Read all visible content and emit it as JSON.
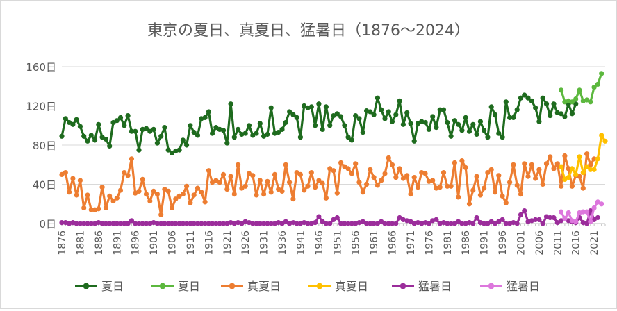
{
  "chart_data": {
    "type": "line",
    "title": "東京の夏日、真夏日、猛暑日（1876～2024）",
    "xlabel": "",
    "ylabel": "",
    "ylim": [
      0,
      160
    ],
    "y_ticks": [
      0,
      40,
      80,
      120,
      160
    ],
    "y_tick_labels": [
      "0日",
      "40日",
      "80日",
      "120日",
      "160日"
    ],
    "x_range": [
      1876,
      2024
    ],
    "x_ticks": [
      1876,
      1881,
      1886,
      1891,
      1896,
      1901,
      1906,
      1911,
      1916,
      1921,
      1926,
      1931,
      1936,
      1941,
      1946,
      1951,
      1956,
      1961,
      1966,
      1971,
      1976,
      1981,
      1986,
      1991,
      1996,
      2001,
      2006,
      2011,
      2016,
      2021
    ],
    "grid": "horizontal",
    "legend_position": "bottom",
    "legend": [
      "夏日",
      "夏日",
      "真夏日",
      "真夏日",
      "猛暑日",
      "猛暑日"
    ],
    "series": [
      {
        "name": "夏日",
        "color": "#1e6b1e",
        "x_start": 1876,
        "values": [
          89,
          107,
          103,
          101,
          106,
          99,
          89,
          84,
          90,
          85,
          101,
          88,
          86,
          79,
          103,
          105,
          108,
          100,
          110,
          94,
          94,
          75,
          96,
          97,
          94,
          96,
          82,
          89,
          98,
          75,
          72,
          74,
          75,
          85,
          80,
          100,
          93,
          90,
          107,
          108,
          114,
          92,
          98,
          96,
          95,
          82,
          122,
          88,
          96,
          91,
          92,
          100,
          90,
          92,
          102,
          89,
          91,
          118,
          92,
          93,
          96,
          103,
          114,
          111,
          108,
          88,
          120,
          118,
          119,
          100,
          122,
          96,
          119,
          100,
          110,
          112,
          109,
          100,
          88,
          85,
          110,
          107,
          93,
          115,
          114,
          111,
          128,
          116,
          107,
          114,
          104,
          111,
          125,
          101,
          113,
          102,
          84,
          102,
          104,
          103,
          96,
          109,
          98,
          116,
          116,
          103,
          89,
          105,
          101,
          95,
          108,
          94,
          101,
          91,
          104,
          95,
          88,
          119,
          111,
          92,
          88,
          124,
          108,
          108,
          116,
          128,
          131,
          128,
          125,
          118,
          104,
          128,
          122,
          110,
          122,
          113,
          112,
          109,
          122,
          112,
          122
        ]
      },
      {
        "name": "夏日",
        "color": "#5cb83e",
        "x_start": 2012,
        "values": [
          136,
          124,
          125,
          124,
          127,
          136,
          125,
          126,
          124,
          139,
          142,
          153
        ]
      },
      {
        "name": "真夏日",
        "color": "#ed7d31",
        "x_start": 1876,
        "values": [
          50,
          52,
          32,
          46,
          29,
          44,
          16,
          29,
          14,
          14,
          15,
          37,
          16,
          28,
          23,
          26,
          34,
          52,
          49,
          66,
          31,
          33,
          45,
          30,
          23,
          33,
          30,
          9,
          35,
          33,
          16,
          25,
          28,
          30,
          38,
          21,
          29,
          36,
          32,
          22,
          54,
          42,
          44,
          42,
          50,
          35,
          48,
          30,
          60,
          36,
          38,
          51,
          49,
          29,
          44,
          30,
          43,
          32,
          50,
          35,
          33,
          60,
          42,
          25,
          52,
          50,
          34,
          38,
          52,
          37,
          44,
          41,
          26,
          56,
          54,
          31,
          62,
          58,
          56,
          51,
          61,
          42,
          32,
          40,
          55,
          47,
          39,
          44,
          51,
          67,
          60,
          47,
          56,
          46,
          49,
          30,
          47,
          37,
          52,
          51,
          43,
          44,
          36,
          37,
          52,
          38,
          38,
          62,
          27,
          64,
          57,
          20,
          34,
          48,
          29,
          36,
          52,
          55,
          32,
          49,
          28,
          21,
          42,
          60,
          39,
          30,
          61,
          48,
          60,
          46,
          55,
          40,
          61,
          68,
          56,
          61,
          38,
          69,
          56,
          38,
          49,
          48,
          36,
          71,
          60,
          66
        ]
      },
      {
        "name": "真夏日",
        "color": "#ffc000",
        "x_start": 2012,
        "values": [
          58,
          45,
          47,
          56,
          50,
          68,
          52,
          58,
          55,
          55,
          66,
          90,
          84
        ]
      },
      {
        "name": "猛暑日",
        "color": "#9b2d9b",
        "x_start": 1876,
        "values": [
          1,
          1,
          0,
          1,
          0,
          0,
          0,
          0,
          0,
          0,
          1,
          0,
          0,
          0,
          0,
          0,
          0,
          0,
          0,
          3,
          0,
          0,
          0,
          0,
          0,
          1,
          0,
          0,
          0,
          0,
          0,
          0,
          0,
          0,
          0,
          0,
          0,
          0,
          0,
          0,
          0,
          0,
          0,
          0,
          0,
          0,
          1,
          0,
          1,
          0,
          2,
          1,
          0,
          0,
          0,
          0,
          0,
          0,
          0,
          1,
          0,
          2,
          0,
          1,
          0,
          0,
          1,
          0,
          0,
          1,
          7,
          2,
          0,
          0,
          4,
          6,
          0,
          0,
          0,
          0,
          0,
          1,
          2,
          0,
          0,
          0,
          0,
          2,
          0,
          0,
          0,
          0,
          6,
          4,
          3,
          2,
          0,
          1,
          0,
          1,
          0,
          3,
          4,
          0,
          1,
          0,
          0,
          0,
          2,
          0,
          0,
          1,
          0,
          6,
          1,
          0,
          0,
          2,
          0,
          2,
          4,
          0,
          0,
          1,
          0,
          9,
          13,
          2,
          3,
          4,
          4,
          0,
          7,
          6,
          6,
          1,
          3,
          5,
          3,
          2,
          1,
          6,
          1,
          0,
          13,
          4,
          6
        ]
      },
      {
        "name": "猛暑日",
        "color": "#dd77dd",
        "x_start": 2012,
        "values": [
          12,
          5,
          11,
          3,
          2,
          11,
          12,
          12,
          2,
          16,
          22,
          20
        ]
      }
    ]
  }
}
